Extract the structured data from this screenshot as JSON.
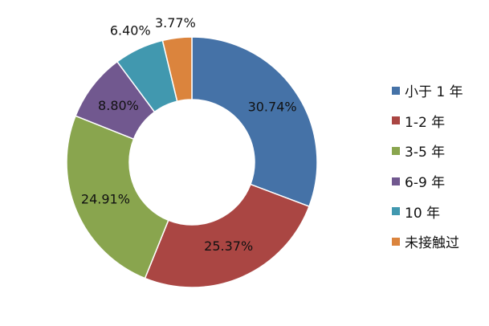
{
  "chart_data": {
    "type": "pie",
    "variant": "donut",
    "categories": [
      "小于 1 年",
      "1-2 年",
      "3-5 年",
      "6-9 年",
      "10 年",
      "未接触过"
    ],
    "values": [
      30.74,
      25.37,
      24.91,
      8.8,
      6.4,
      3.77
    ],
    "data_labels": [
      "30.74%",
      "25.37%",
      "24.91%",
      "8.80%",
      "6.40%",
      "3.77%"
    ],
    "colors": [
      "#4572A7",
      "#AA4643",
      "#89A54E",
      "#71588F",
      "#4198AF",
      "#DB843D"
    ],
    "legend_position": "right",
    "title": ""
  }
}
